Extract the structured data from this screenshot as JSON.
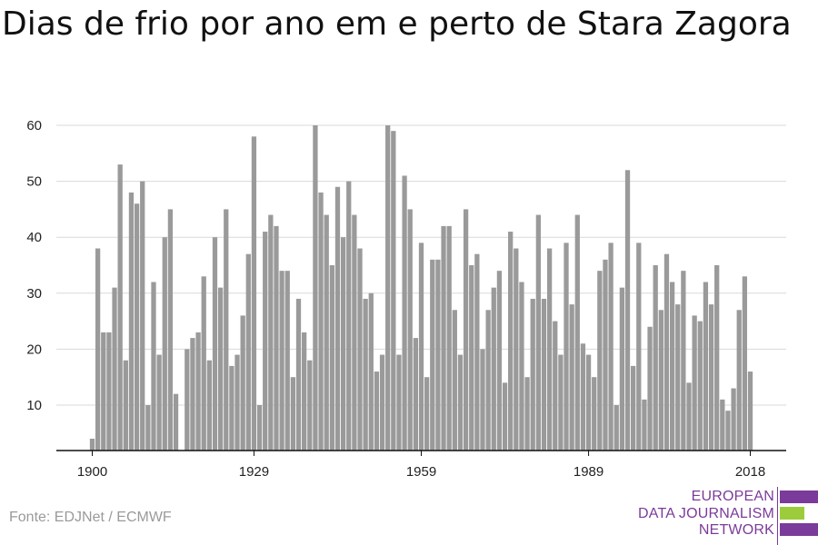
{
  "title": "Dias de frio por ano em e perto de Stara Zagora",
  "source": "Fonte: EDJNet / ECMWF",
  "logo": {
    "lines": [
      "EUROPEAN",
      "DATA JOURNALISM",
      "NETWORK"
    ],
    "colors": {
      "purple": "#7b3b9a",
      "green": "#9ccc3c"
    }
  },
  "chart_data": {
    "type": "bar",
    "x_start": 1900,
    "x_end": 2018,
    "x_ticks": [
      1900,
      1929,
      1959,
      1989,
      2018
    ],
    "y_ticks": [
      10,
      20,
      30,
      40,
      50,
      60
    ],
    "ylim": [
      2,
      60
    ],
    "bar_color": "#9a9a9a",
    "grid": true,
    "values": [
      4,
      38,
      23,
      23,
      31,
      53,
      18,
      48,
      46,
      50,
      10,
      32,
      19,
      40,
      45,
      12,
      null,
      20,
      22,
      23,
      33,
      18,
      40,
      31,
      45,
      17,
      19,
      26,
      37,
      58,
      10,
      41,
      44,
      42,
      34,
      34,
      15,
      29,
      23,
      18,
      60,
      48,
      44,
      35,
      49,
      40,
      50,
      44,
      38,
      29,
      30,
      16,
      19,
      60,
      59,
      19,
      51,
      45,
      22,
      39,
      15,
      36,
      36,
      42,
      42,
      27,
      19,
      45,
      35,
      37,
      20,
      27,
      31,
      34,
      14,
      41,
      38,
      32,
      15,
      29,
      44,
      29,
      38,
      25,
      19,
      39,
      28,
      44,
      21,
      19,
      15,
      34,
      36,
      39,
      10,
      31,
      52,
      17,
      39,
      11,
      24,
      35,
      27,
      37,
      32,
      28,
      34,
      14,
      26,
      25,
      32,
      28,
      35,
      11,
      9,
      13,
      27,
      33,
      16
    ]
  }
}
